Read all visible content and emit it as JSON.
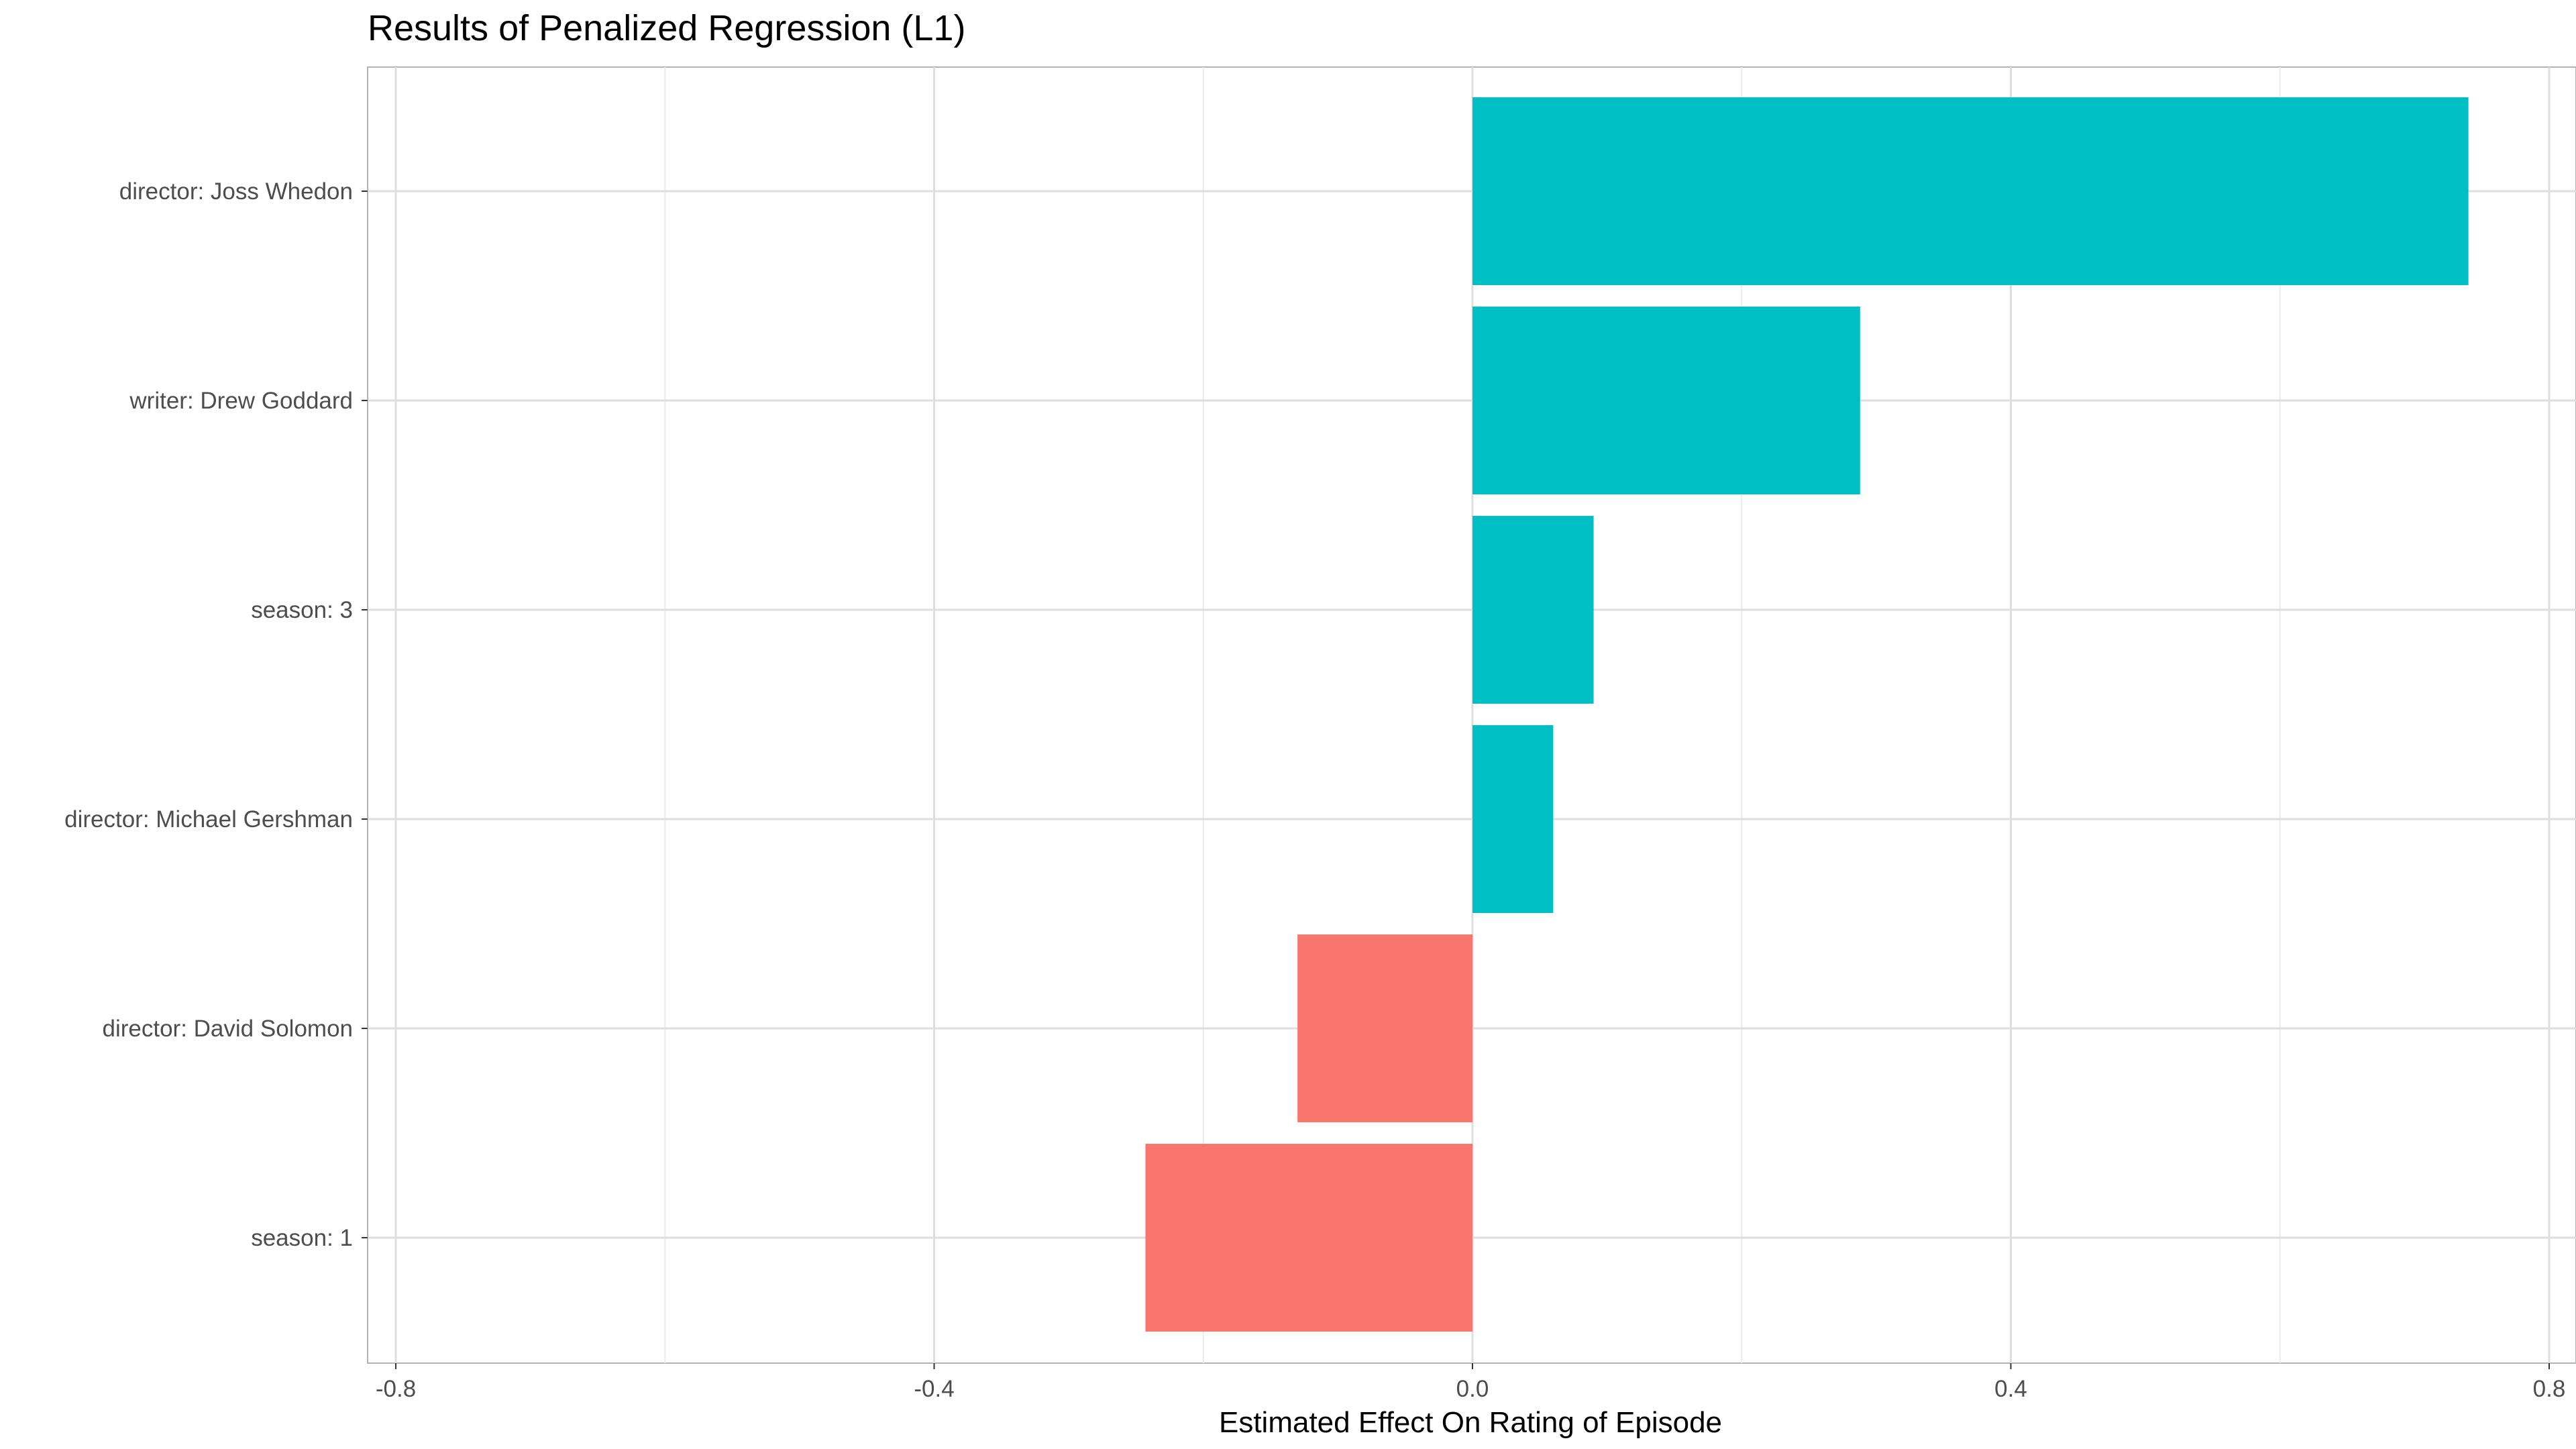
{
  "chart_data": {
    "type": "bar",
    "orientation": "horizontal",
    "title": "Results of Penalized Regression (L1)",
    "xlabel": "Estimated Effect On Rating of Episode",
    "ylabel": "",
    "xlim": [
      -0.8,
      0.8
    ],
    "xticks": [
      "-0.8",
      "-0.4",
      "0.0",
      "0.4",
      "0.8"
    ],
    "xtick_values": [
      -0.8,
      -0.4,
      0.0,
      0.4,
      0.8
    ],
    "categories": [
      "director: Joss Whedon",
      "writer: Drew Goddard",
      "season: 3",
      "director: Michael Gershman",
      "director: David Solomon",
      "season: 1"
    ],
    "values": [
      0.74,
      0.288,
      0.09,
      0.06,
      -0.13,
      -0.243
    ],
    "colors": {
      "positive": "#00BFC4",
      "negative": "#F8766D"
    },
    "grid": true,
    "legend": "none"
  }
}
